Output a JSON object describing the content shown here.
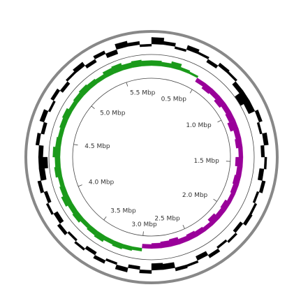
{
  "chart_data": {
    "type": "circular-genome",
    "xlim": [
      0,
      5.8
    ],
    "xticks": [
      {
        "value": 0.5,
        "label": "0.5 Mbp"
      },
      {
        "value": 1.0,
        "label": "1.0 Mbp"
      },
      {
        "value": 1.5,
        "label": "1.5 Mbp"
      },
      {
        "value": 2.0,
        "label": "2.0 Mbp"
      },
      {
        "value": 2.5,
        "label": "2.5 Mbp"
      },
      {
        "value": 3.0,
        "label": "3.0 Mbp"
      },
      {
        "value": 3.5,
        "label": "3.5 Mbp"
      },
      {
        "value": 4.0,
        "label": "4.0 Mbp"
      },
      {
        "value": 4.5,
        "label": "4.5 Mbp"
      },
      {
        "value": 5.0,
        "label": "5.0 Mbp"
      },
      {
        "value": 5.5,
        "label": "5.5 Mbp"
      }
    ],
    "series": [
      {
        "color": "#000000",
        "ylim": [
          -1,
          1
        ],
        "values": [
          0.6,
          0.3,
          -0.2,
          0.4,
          0.2,
          -0.3,
          0.3,
          0.2,
          -0.4,
          -0.9,
          -0.6,
          0.3,
          -0.2,
          0.4,
          -0.3,
          0.2,
          -0.4,
          0.3,
          -0.2,
          0.2,
          0.3,
          -0.3,
          0.2,
          -0.2,
          0.3,
          -0.4,
          0.2,
          0.3,
          -0.5,
          -0.6,
          0.3,
          -0.3,
          0.4,
          -0.2,
          0.3,
          -0.3,
          0.2,
          -0.2,
          0.3,
          -0.4,
          0.2,
          -0.3,
          0.3,
          -0.5,
          -0.8,
          -0.4,
          0.3,
          -0.3,
          0.4,
          -0.2,
          0.3,
          -0.3,
          0.2,
          0.4,
          -0.3,
          0.3,
          -0.4,
          0.5,
          0.3,
          -0.2
        ]
      },
      {
        "positive_color": "#1a9a1a",
        "negative_color": "#990099",
        "ylim": [
          -1,
          1
        ],
        "values": [
          0.5,
          0.4,
          0.6,
          0.3,
          0.2,
          -0.4,
          -0.6,
          -0.5,
          -0.7,
          -0.5,
          -0.6,
          -0.8,
          -0.5,
          -0.6,
          -0.4,
          -0.7,
          -0.5,
          -0.6,
          -0.5,
          -0.4,
          -0.6,
          -0.5,
          -0.7,
          -0.4,
          -0.5,
          -0.6,
          -0.5,
          -0.7,
          -0.6,
          -0.5,
          -0.4,
          0.3,
          0.4,
          0.5,
          0.4,
          0.6,
          0.5,
          0.4,
          0.6,
          0.5,
          0.7,
          0.5,
          0.4,
          0.6,
          0.5,
          0.7,
          0.5,
          0.4,
          0.5,
          0.6,
          0.4,
          0.5,
          0.6,
          0.5,
          0.4,
          0.6,
          0.7,
          0.5,
          0.6,
          0.5
        ]
      }
    ]
  }
}
